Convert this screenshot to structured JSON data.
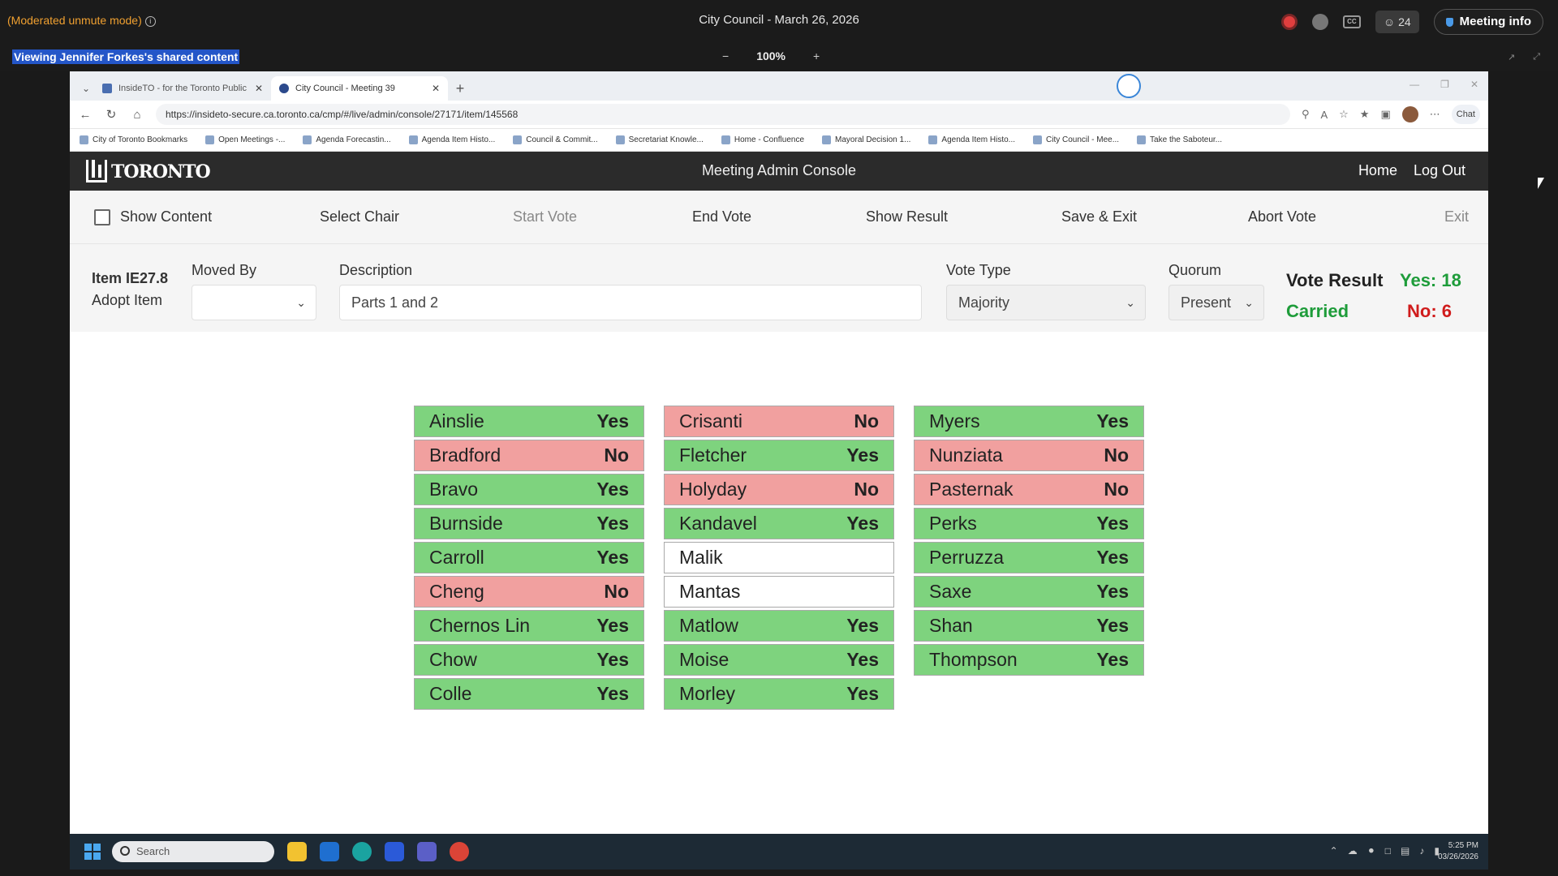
{
  "meeting": {
    "mode_text": "(Moderated unmute mode)",
    "title": "City Council - March 26, 2026",
    "people_count": "24",
    "cc_label": "CC",
    "meeting_info_label": "Meeting info",
    "viewing_text": "Viewing Jennifer Forkes's shared content",
    "zoom_minus": "−",
    "zoom_value": "100%",
    "zoom_plus": "+"
  },
  "browser": {
    "tabs": [
      {
        "label": "InsideTO - for the Toronto Public Se..."
      },
      {
        "label": "City Council - Meeting 39"
      }
    ],
    "url": "https://insideto-secure.ca.toronto.ca/cmp/#/live/admin/console/27171/item/145568",
    "copilot_label": "Chat",
    "bookmarks": [
      "City of Toronto Bookmarks",
      "Open Meetings -...",
      "Agenda Forecastin...",
      "Agenda Item Histo...",
      "Council & Commit...",
      "Secretariat Knowle...",
      "Home - Confluence",
      "Mayoral Decision 1...",
      "Agenda Item Histo...",
      "City Council - Mee...",
      "Take the Saboteur..."
    ]
  },
  "app": {
    "logo_text": "TORONTO",
    "title": "Meeting Admin Console",
    "nav": {
      "home": "Home",
      "logout": "Log Out"
    },
    "toolbar": {
      "show_content": "Show Content",
      "select_chair": "Select Chair",
      "start_vote": "Start Vote",
      "end_vote": "End Vote",
      "show_result": "Show Result",
      "save_exit": "Save & Exit",
      "abort_vote": "Abort Vote",
      "exit": "Exit"
    },
    "item": {
      "id": "Item IE27.8",
      "action": "Adopt Item",
      "moved_by_label": "Moved By",
      "moved_by_value": "",
      "description_label": "Description",
      "description_value": "Parts 1 and 2",
      "vote_type_label": "Vote Type",
      "vote_type_value": "Majority",
      "quorum_label": "Quorum",
      "quorum_value": "Present",
      "vote_result_label": "Vote Result",
      "vote_result_status": "Carried",
      "yes_total": "Yes: 18",
      "no_total": "No: 6"
    },
    "votes": [
      [
        {
          "name": "Ainslie",
          "vote": "Yes"
        },
        {
          "name": "Bradford",
          "vote": "No"
        },
        {
          "name": "Bravo",
          "vote": "Yes"
        },
        {
          "name": "Burnside",
          "vote": "Yes"
        },
        {
          "name": "Carroll",
          "vote": "Yes"
        },
        {
          "name": "Cheng",
          "vote": "No"
        },
        {
          "name": "Chernos Lin",
          "vote": "Yes"
        },
        {
          "name": "Chow",
          "vote": "Yes"
        },
        {
          "name": "Colle",
          "vote": "Yes"
        }
      ],
      [
        {
          "name": "Crisanti",
          "vote": "No"
        },
        {
          "name": "Fletcher",
          "vote": "Yes"
        },
        {
          "name": "Holyday",
          "vote": "No"
        },
        {
          "name": "Kandavel",
          "vote": "Yes"
        },
        {
          "name": "Malik",
          "vote": ""
        },
        {
          "name": "Mantas",
          "vote": ""
        },
        {
          "name": "Matlow",
          "vote": "Yes"
        },
        {
          "name": "Moise",
          "vote": "Yes"
        },
        {
          "name": "Morley",
          "vote": "Yes"
        }
      ],
      [
        {
          "name": "Myers",
          "vote": "Yes"
        },
        {
          "name": "Nunziata",
          "vote": "No"
        },
        {
          "name": "Pasternak",
          "vote": "No"
        },
        {
          "name": "Perks",
          "vote": "Yes"
        },
        {
          "name": "Perruzza",
          "vote": "Yes"
        },
        {
          "name": "Saxe",
          "vote": "Yes"
        },
        {
          "name": "Shan",
          "vote": "Yes"
        },
        {
          "name": "Thompson",
          "vote": "Yes"
        }
      ]
    ]
  },
  "taskbar": {
    "search_placeholder": "Search",
    "time": "5:25 PM",
    "date": "03/26/2026"
  },
  "colors": {
    "yes": "#7ed37e",
    "no": "#f1a09f",
    "carried": "#1e9c3a",
    "no_text": "#d01c1c"
  }
}
